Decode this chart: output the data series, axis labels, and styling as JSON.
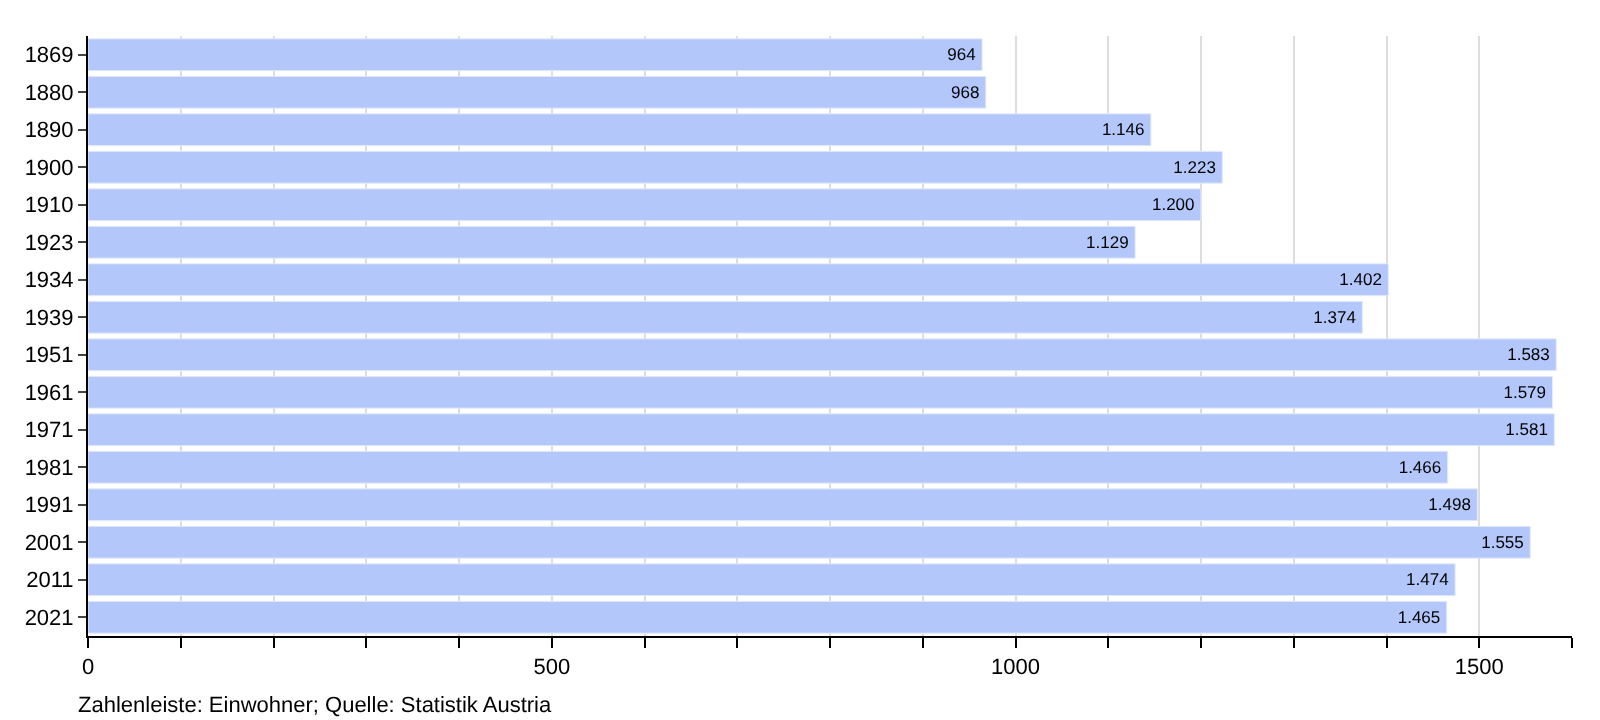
{
  "chart_data": {
    "type": "bar",
    "orientation": "horizontal",
    "categories": [
      "1869",
      "1880",
      "1890",
      "1900",
      "1910",
      "1923",
      "1934",
      "1939",
      "1951",
      "1961",
      "1971",
      "1981",
      "1991",
      "2001",
      "2011",
      "2021"
    ],
    "values": [
      964,
      968,
      1146,
      1223,
      1200,
      1129,
      1402,
      1374,
      1583,
      1579,
      1581,
      1466,
      1498,
      1555,
      1474,
      1465
    ],
    "value_labels": [
      "964",
      "968",
      "1.146",
      "1.223",
      "1.200",
      "1.129",
      "1.402",
      "1.374",
      "1.583",
      "1.579",
      "1.581",
      "1.466",
      "1.498",
      "1.555",
      "1.474",
      "1.465"
    ],
    "color": "#b3c7fb",
    "xlim": [
      0,
      1600
    ],
    "xticks": [
      0,
      {
        "value": 100,
        "label": null
      },
      {
        "value": 200,
        "label": null
      },
      {
        "value": 300,
        "label": null
      },
      {
        "value": 400,
        "label": null
      },
      500,
      {
        "value": 600,
        "label": null
      },
      {
        "value": 700,
        "label": null
      },
      {
        "value": 800,
        "label": null
      },
      {
        "value": 900,
        "label": null
      },
      1000,
      {
        "value": 1100,
        "label": null
      },
      {
        "value": 1200,
        "label": null
      },
      {
        "value": 1300,
        "label": null
      },
      {
        "value": 1400,
        "label": null
      },
      1500,
      {
        "value": 1600,
        "label": null
      }
    ],
    "grid": "x",
    "legend": false,
    "annotations": [
      "Zahlenleiste: Einwohner; Quelle: Statistik Austria"
    ]
  }
}
